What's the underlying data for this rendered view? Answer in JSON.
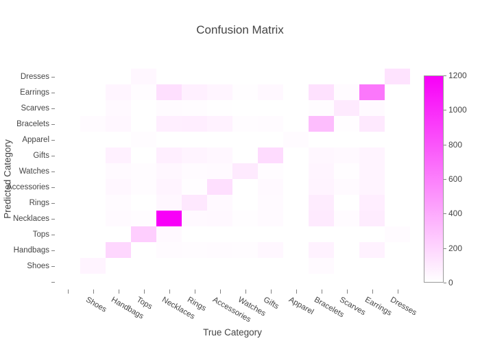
{
  "chart_data": {
    "type": "heatmap",
    "title": "Confusion Matrix",
    "xlabel": "True Category",
    "ylabel": "Predicted Category",
    "x_categories": [
      "",
      "Shoes",
      "Handbags",
      "Tops",
      "Necklaces",
      "Rings",
      "Accessories",
      "Watches",
      "Gifts",
      "Apparel",
      "Bracelets",
      "Scarves",
      "Earrings",
      "Dresses"
    ],
    "y_categories_top_to_bottom": [
      "Dresses",
      "Earrings",
      "Scarves",
      "Bracelets",
      "Apparel",
      "Gifts",
      "Watches",
      "Accessories",
      "Rings",
      "Necklaces",
      "Tops",
      "Handbags",
      "Shoes",
      ""
    ],
    "matrix_rows_top_to_bottom": [
      [
        0,
        0,
        0,
        40,
        0,
        0,
        0,
        0,
        0,
        0,
        0,
        0,
        0,
        130
      ],
      [
        0,
        0,
        45,
        15,
        150,
        70,
        45,
        10,
        35,
        0,
        140,
        20,
        640,
        0
      ],
      [
        0,
        0,
        30,
        0,
        20,
        15,
        5,
        0,
        0,
        0,
        15,
        100,
        25,
        0
      ],
      [
        0,
        20,
        40,
        0,
        75,
        80,
        60,
        15,
        20,
        0,
        310,
        10,
        105,
        0
      ],
      [
        0,
        0,
        0,
        15,
        0,
        0,
        0,
        0,
        0,
        20,
        0,
        0,
        0,
        0
      ],
      [
        0,
        0,
        65,
        0,
        75,
        50,
        40,
        0,
        170,
        0,
        40,
        30,
        50,
        0
      ],
      [
        0,
        0,
        25,
        15,
        40,
        20,
        25,
        100,
        15,
        0,
        45,
        10,
        50,
        0
      ],
      [
        0,
        0,
        40,
        15,
        50,
        10,
        150,
        0,
        30,
        0,
        50,
        25,
        50,
        0
      ],
      [
        0,
        0,
        20,
        0,
        40,
        110,
        30,
        0,
        25,
        0,
        90,
        0,
        80,
        0
      ],
      [
        0,
        0,
        25,
        15,
        1200,
        30,
        35,
        10,
        25,
        0,
        100,
        20,
        90,
        0
      ],
      [
        0,
        0,
        0,
        230,
        30,
        0,
        0,
        0,
        0,
        0,
        0,
        0,
        0,
        20
      ],
      [
        0,
        0,
        190,
        0,
        20,
        15,
        20,
        15,
        40,
        0,
        60,
        0,
        60,
        0
      ],
      [
        0,
        50,
        0,
        0,
        0,
        0,
        0,
        0,
        0,
        0,
        25,
        0,
        0,
        0
      ],
      [
        0,
        0,
        0,
        0,
        0,
        0,
        0,
        0,
        0,
        0,
        0,
        0,
        0,
        0
      ]
    ],
    "zmin": 0,
    "zmax": 1200,
    "colorbar_ticks": [
      0,
      200,
      400,
      600,
      800,
      1000,
      1200
    ],
    "colorscale": {
      "min_color": "#ffffff",
      "max_color": "#f800f8"
    },
    "legend_position": "right",
    "grid": false
  }
}
